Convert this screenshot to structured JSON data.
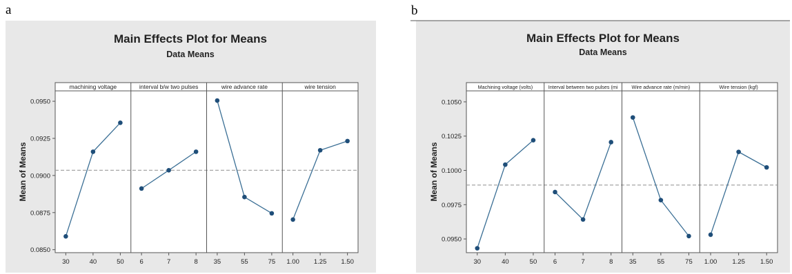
{
  "chart_data": [
    {
      "type": "line",
      "figure_letter": "a",
      "title": "Main Effects Plot for Means",
      "subtitle": "Data Means",
      "ylabel": "Mean of Means",
      "ylim": [
        0.0848,
        0.0957
      ],
      "yticks": [
        "0.0950",
        "0.0925",
        "0.0900",
        "0.0875",
        "0.0850"
      ],
      "ytick_values": [
        0.095,
        0.0925,
        0.09,
        0.0875,
        0.085
      ],
      "reference_line": 0.09035,
      "panels": [
        {
          "name": "machining voltage",
          "x": [
            "30",
            "40",
            "50"
          ],
          "values": [
            0.0859,
            0.0916,
            0.09355
          ]
        },
        {
          "name": "interval b/w two pulses",
          "x": [
            "6",
            "7",
            "8"
          ],
          "values": [
            0.08912,
            0.09035,
            0.0916
          ]
        },
        {
          "name": "wire advance rate",
          "x": [
            "35",
            "55",
            "75"
          ],
          "values": [
            0.09505,
            0.08855,
            0.08745
          ]
        },
        {
          "name": "wire tension",
          "x": [
            "1.00",
            "1.25",
            "1.50"
          ],
          "values": [
            0.08703,
            0.0917,
            0.09232
          ]
        }
      ],
      "colors": {
        "background": "#e8e8e8",
        "line": "#3b6f95",
        "marker": "#1f4e79",
        "reference": "#9a9a9a"
      }
    },
    {
      "type": "line",
      "figure_letter": "b",
      "title": "Main Effects Plot for Means",
      "subtitle": "Data Means",
      "ylabel": "Mean of Means",
      "ylim": [
        0.094,
        0.1058
      ],
      "yticks": [
        "0.1050",
        "0.1025",
        "0.1000",
        "0.0975",
        "0.0950"
      ],
      "ytick_values": [
        0.105,
        0.1025,
        0.1,
        0.0975,
        0.095
      ],
      "reference_line": 0.09893,
      "panels": [
        {
          "name": "Machining voltage (volts)",
          "x": [
            "30",
            "40",
            "50"
          ],
          "values": [
            0.09432,
            0.10042,
            0.1022
          ]
        },
        {
          "name": "Interval between two pulses (mi",
          "x": [
            "6",
            "7",
            "8"
          ],
          "values": [
            0.09842,
            0.09642,
            0.10206
          ]
        },
        {
          "name": "Wire advance rate (m/min)",
          "x": [
            "35",
            "55",
            "75"
          ],
          "values": [
            0.10386,
            0.09783,
            0.09521
          ]
        },
        {
          "name": "Wire tension  (kgf)",
          "x": [
            "1.00",
            "1.25",
            "1.50"
          ],
          "values": [
            0.09531,
            0.10135,
            0.10022
          ]
        }
      ],
      "colors": {
        "background": "#e8e8e8",
        "line": "#3b6f95",
        "marker": "#1f4e79",
        "reference": "#9a9a9a"
      }
    }
  ]
}
